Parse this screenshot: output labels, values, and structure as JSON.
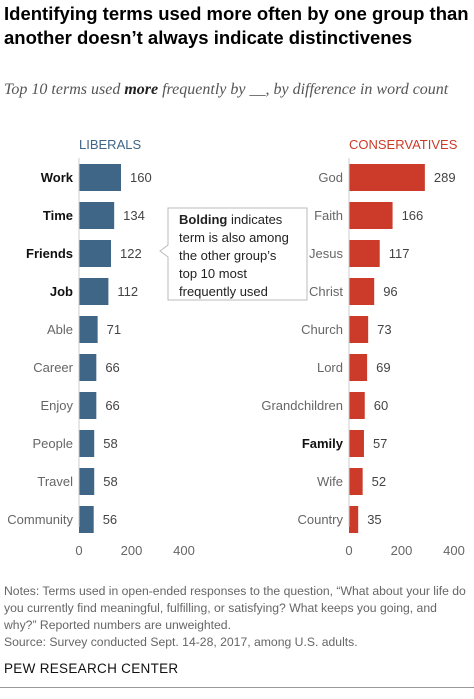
{
  "title": "Identifying terms used more often by one group than another doesn’t always indicate distinctivenes",
  "subtitle": {
    "pre": "Top 10 terms used ",
    "bold": "more",
    "post": " frequently by __, by difference in word count"
  },
  "callout": {
    "bold": "Bolding",
    "text": "indicates term is also among the other group’s top 10 most frequently used"
  },
  "notes": "Notes: Terms used in open-ended responses to the question, “What about your life do you currently find meaningful, fulfilling, or satisfying? What keeps you going, and why?” Reported numbers are unweighted.",
  "source": "Source: Survey conducted Sept. 14-28, 2017, among U.S. adults.",
  "brand": "PEW RESEARCH CENTER",
  "colors": {
    "liberals": "#3f6587",
    "conservatives": "#cc3b2a"
  },
  "chart_data": [
    {
      "type": "bar",
      "orientation": "horizontal",
      "title": "LIBERALS",
      "categories": [
        "Work",
        "Time",
        "Friends",
        "Job",
        "Able",
        "Career",
        "Enjoy",
        "People",
        "Travel",
        "Community"
      ],
      "values": [
        160,
        134,
        122,
        112,
        71,
        66,
        66,
        58,
        58,
        56
      ],
      "bold": [
        true,
        true,
        true,
        true,
        false,
        false,
        false,
        false,
        false,
        false
      ],
      "xticks": [
        "0",
        "200",
        "400"
      ],
      "xlim": [
        0,
        400
      ],
      "color": "#3f6587",
      "grid": false
    },
    {
      "type": "bar",
      "orientation": "horizontal",
      "title": "CONSERVATIVES",
      "categories": [
        "God",
        "Faith",
        "Jesus",
        "Christ",
        "Church",
        "Lord",
        "Grandchildren",
        "Family",
        "Wife",
        "Country"
      ],
      "values": [
        289,
        166,
        117,
        96,
        73,
        69,
        60,
        57,
        52,
        35
      ],
      "bold": [
        false,
        false,
        false,
        false,
        false,
        false,
        false,
        true,
        false,
        false
      ],
      "xticks": [
        "0",
        "200",
        "400"
      ],
      "xlim": [
        0,
        400
      ],
      "color": "#cc3b2a",
      "grid": false
    }
  ]
}
